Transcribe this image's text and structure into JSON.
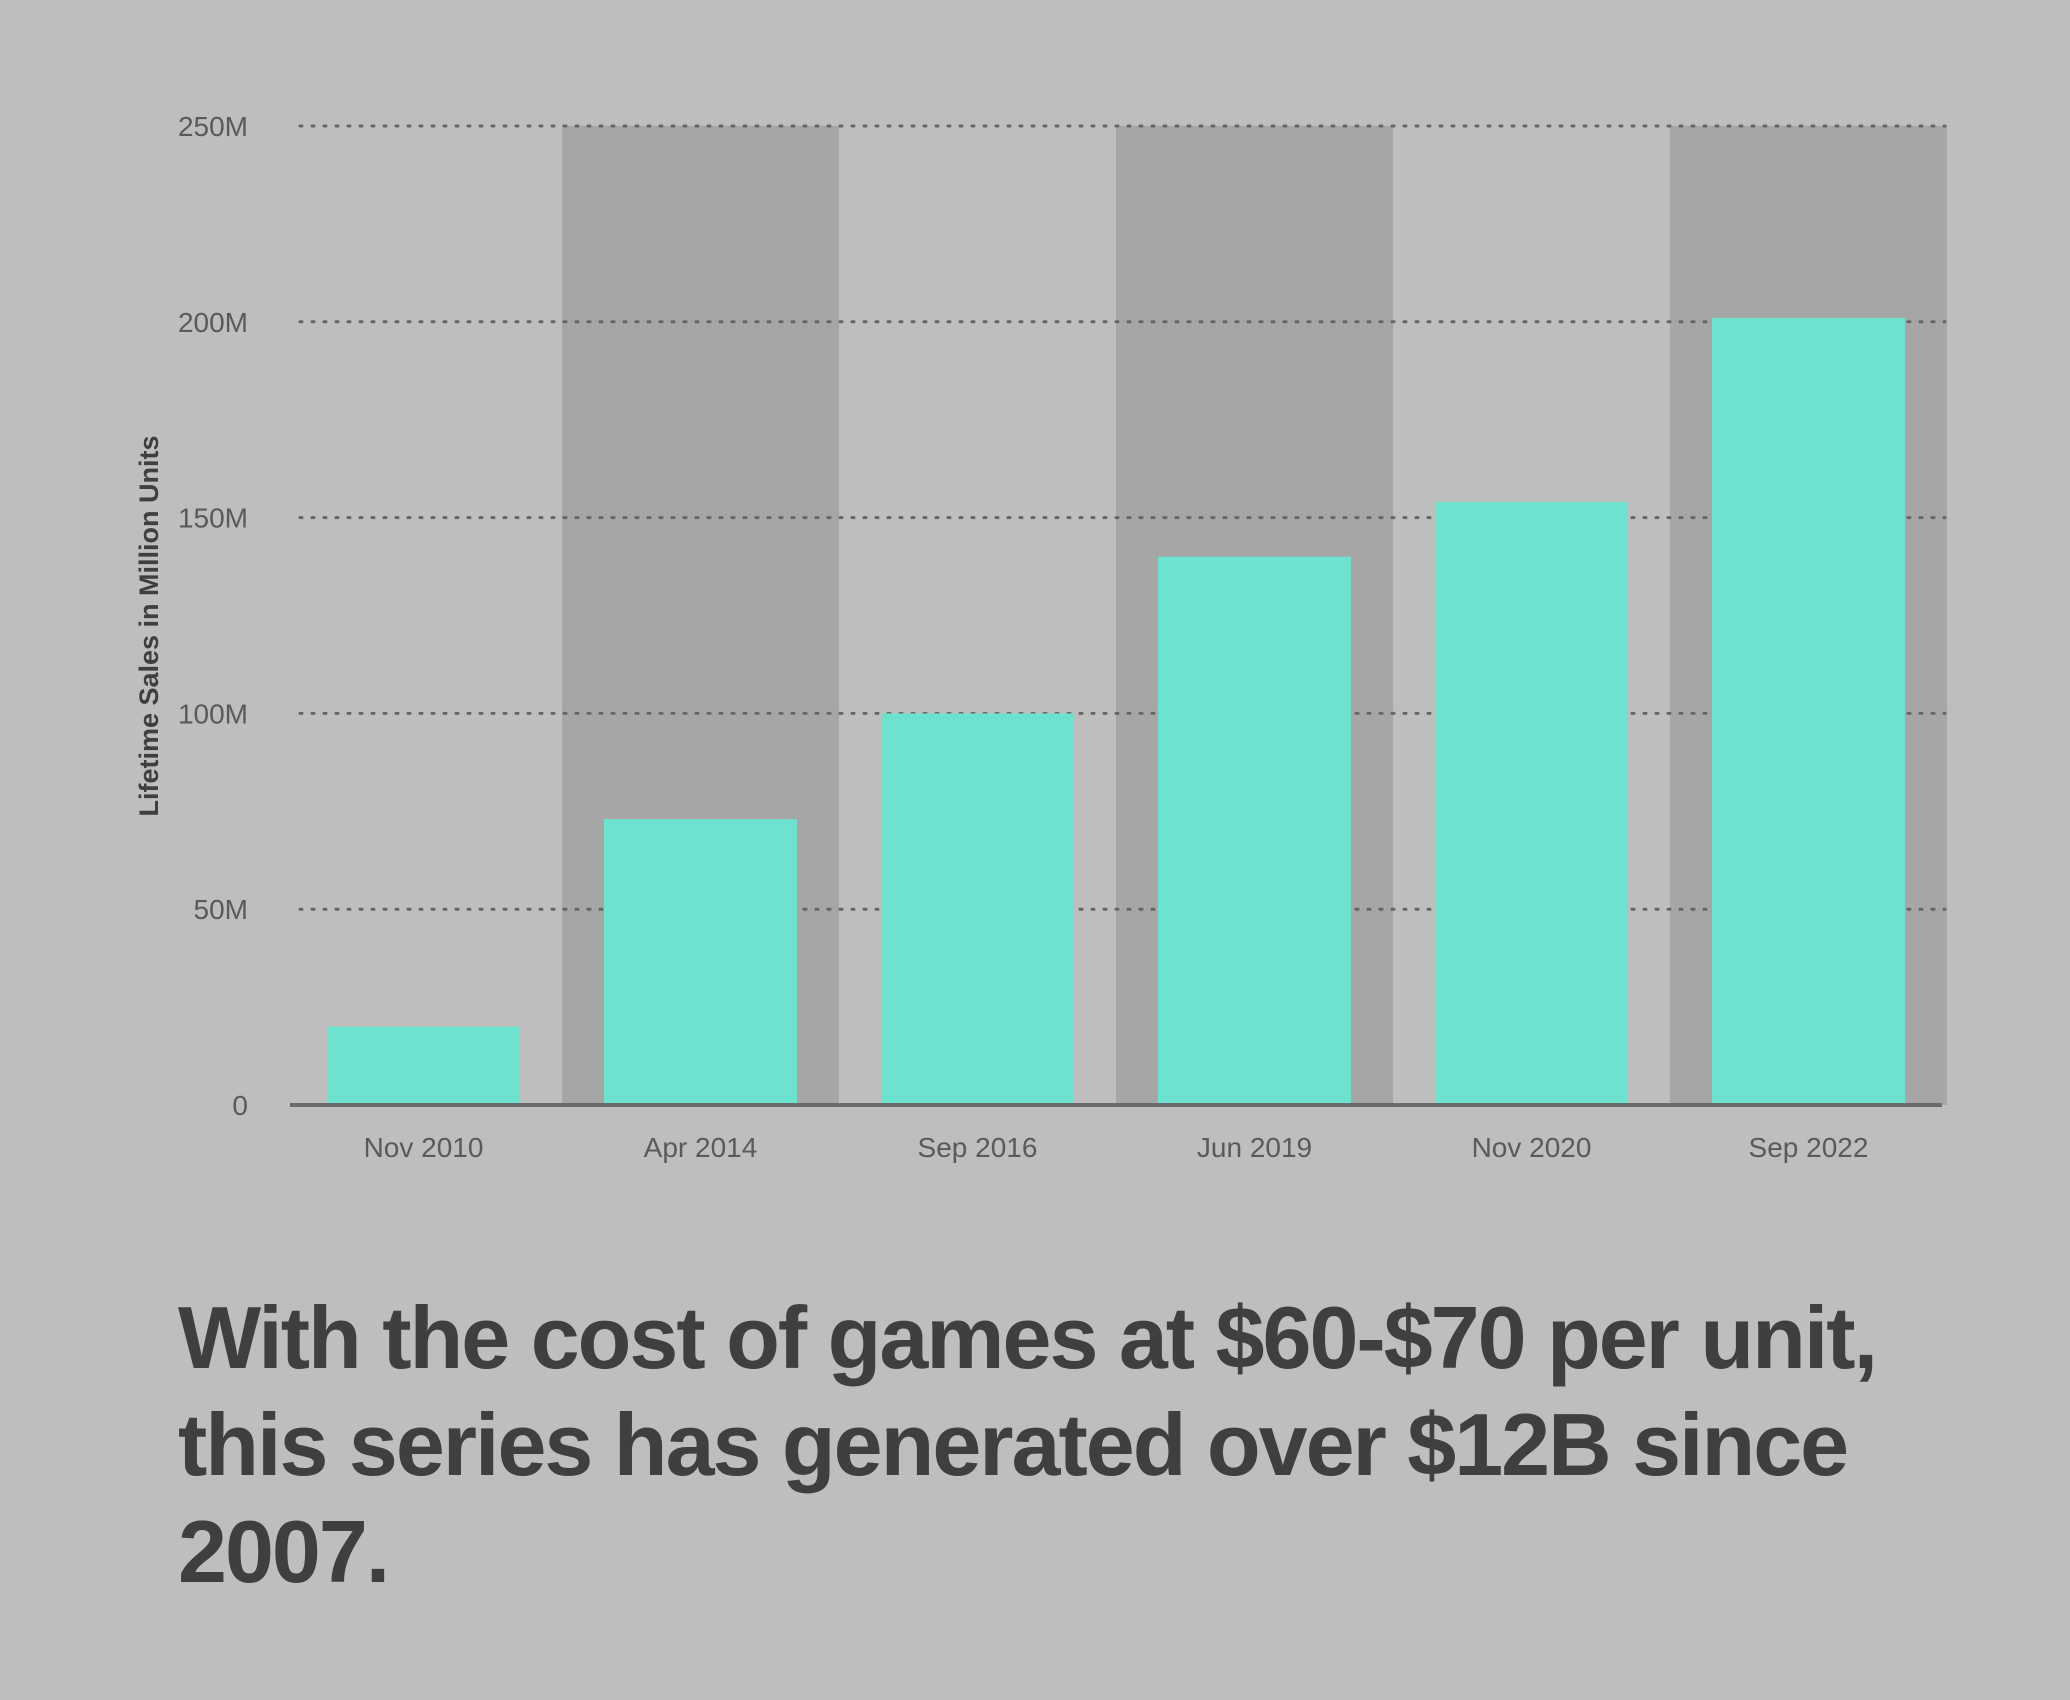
{
  "colors": {
    "background": "#bebebe",
    "band": "#a6a6a6",
    "bar": "#6de3cf",
    "grid": "#666666",
    "axis": "#6b6b6b",
    "caption": "#3f3f3f"
  },
  "chart_data": {
    "type": "bar",
    "categories": [
      "Nov 2010",
      "Apr 2014",
      "Sep 2016",
      "Jun 2019",
      "Nov 2020",
      "Sep 2022"
    ],
    "values": [
      20,
      73,
      100,
      140,
      154,
      201
    ],
    "ylabel": "Lifetime Sales in Million Units",
    "ylim": [
      0,
      250
    ],
    "yticks": [
      {
        "value": 0,
        "label": "0"
      },
      {
        "value": 50,
        "label": "50M"
      },
      {
        "value": 100,
        "label": "100M"
      },
      {
        "value": 150,
        "label": "150M"
      },
      {
        "value": 200,
        "label": "200M"
      },
      {
        "value": 250,
        "label": "250M"
      }
    ],
    "shaded_bands": [
      "Apr 2014",
      "Jun 2019",
      "Sep 2022"
    ],
    "grid": "horizontal dotted",
    "legend": "none"
  },
  "caption": "With the cost of games at $60-$70 per unit, this series has generated over $12B since 2007."
}
